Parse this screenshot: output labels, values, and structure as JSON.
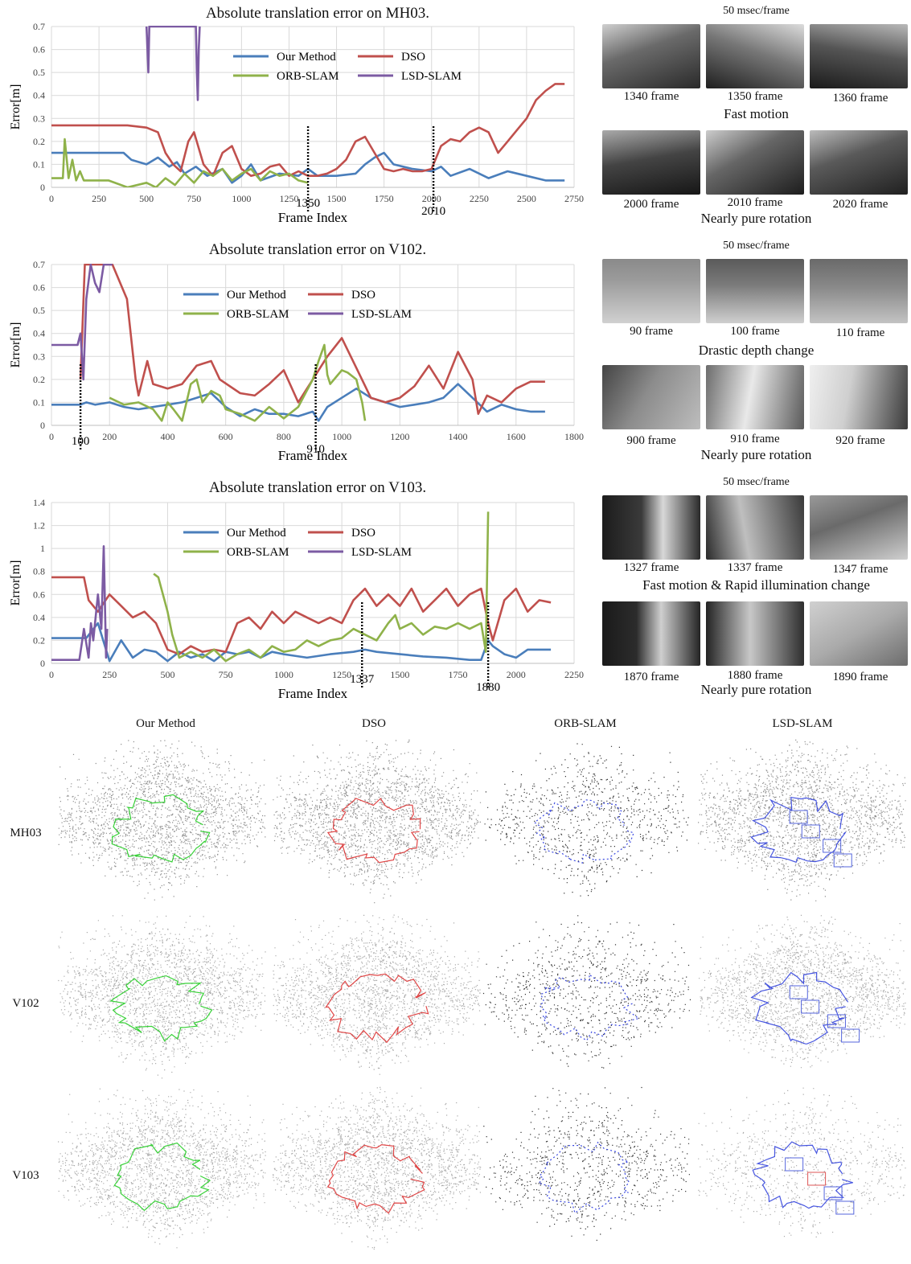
{
  "chart_data": [
    {
      "type": "line",
      "title": "Absolute translation error on MH03.",
      "xlabel": "Frame Index",
      "ylabel": "Error[m]",
      "xlim": [
        0,
        2750
      ],
      "ylim": [
        0,
        0.7
      ],
      "x_ticks": [
        "0",
        "250",
        "500",
        "750",
        "1000",
        "1250",
        "1500",
        "1750",
        "2000",
        "2250",
        "2500",
        "2750"
      ],
      "y_ticks": [
        "0",
        "0.1",
        "0.2",
        "0.3",
        "0.4",
        "0.5",
        "0.6",
        "0.7"
      ],
      "markers": [
        {
          "x": 1350,
          "label": "1350"
        },
        {
          "x": 2010,
          "label": "2010"
        }
      ],
      "legend": "top-center",
      "series": [
        {
          "name": "Our Method",
          "color": "#4a7ebb",
          "x": [
            0,
            150,
            380,
            420,
            500,
            560,
            620,
            660,
            700,
            760,
            820,
            900,
            950,
            1000,
            1050,
            1100,
            1200,
            1300,
            1350,
            1400,
            1500,
            1600,
            1650,
            1700,
            1750,
            1800,
            1900,
            2000,
            2050,
            2100,
            2200,
            2300,
            2400,
            2500,
            2600,
            2700
          ],
          "y": [
            0.15,
            0.15,
            0.15,
            0.12,
            0.1,
            0.13,
            0.09,
            0.11,
            0.06,
            0.09,
            0.05,
            0.08,
            0.02,
            0.05,
            0.1,
            0.03,
            0.06,
            0.05,
            0.08,
            0.05,
            0.05,
            0.06,
            0.1,
            0.13,
            0.15,
            0.1,
            0.08,
            0.07,
            0.09,
            0.05,
            0.08,
            0.04,
            0.07,
            0.05,
            0.03,
            0.03
          ]
        },
        {
          "name": "DSO",
          "color": "#c0504d",
          "x": [
            0,
            200,
            400,
            500,
            560,
            600,
            640,
            680,
            720,
            750,
            800,
            850,
            900,
            950,
            1000,
            1050,
            1100,
            1150,
            1200,
            1250,
            1300,
            1350,
            1400,
            1450,
            1500,
            1550,
            1600,
            1650,
            1700,
            1750,
            1800,
            1850,
            1900,
            1950,
            2000,
            2050,
            2100,
            2150,
            2200,
            2250,
            2300,
            2350,
            2400,
            2450,
            2500,
            2550,
            2600,
            2650,
            2700
          ],
          "y": [
            0.27,
            0.27,
            0.27,
            0.26,
            0.24,
            0.15,
            0.1,
            0.07,
            0.2,
            0.24,
            0.1,
            0.05,
            0.15,
            0.18,
            0.08,
            0.05,
            0.06,
            0.09,
            0.1,
            0.05,
            0.07,
            0.05,
            0.05,
            0.06,
            0.08,
            0.12,
            0.2,
            0.22,
            0.15,
            0.08,
            0.07,
            0.08,
            0.07,
            0.07,
            0.08,
            0.18,
            0.21,
            0.2,
            0.24,
            0.26,
            0.24,
            0.15,
            0.2,
            0.25,
            0.3,
            0.38,
            0.42,
            0.45,
            0.45
          ]
        },
        {
          "name": "ORB-SLAM",
          "color": "#8fb24a",
          "x": [
            0,
            60,
            70,
            90,
            110,
            130,
            150,
            170,
            200,
            300,
            400,
            500,
            550,
            600,
            650,
            700,
            750,
            800,
            850,
            900,
            950,
            1000,
            1050,
            1100,
            1150,
            1200,
            1250,
            1300,
            1350
          ],
          "y": [
            0.04,
            0.04,
            0.21,
            0.04,
            0.12,
            0.03,
            0.07,
            0.03,
            0.03,
            0.03,
            0.0,
            0.02,
            0.0,
            0.04,
            0.01,
            0.06,
            0.02,
            0.07,
            0.05,
            0.08,
            0.03,
            0.06,
            0.08,
            0.03,
            0.07,
            0.05,
            0.06,
            0.03,
            0.02
          ]
        },
        {
          "name": "LSD-SLAM",
          "color": "#7c5ba3",
          "x": [
            500,
            505,
            510,
            515,
            760,
            765,
            770,
            775,
            780
          ],
          "y": [
            0.7,
            0.6,
            0.5,
            0.7,
            0.7,
            0.5,
            0.38,
            0.6,
            0.7
          ]
        }
      ]
    },
    {
      "type": "line",
      "title": "Absolute translation error on V102.",
      "xlabel": "Frame Index",
      "ylabel": "Error[m]",
      "xlim": [
        0,
        1800
      ],
      "ylim": [
        0,
        0.7
      ],
      "x_ticks": [
        "0",
        "200",
        "400",
        "600",
        "800",
        "1000",
        "1200",
        "1400",
        "1600",
        "1800"
      ],
      "y_ticks": [
        "0",
        "0.1",
        "0.2",
        "0.3",
        "0.4",
        "0.5",
        "0.6",
        "0.7"
      ],
      "markers": [
        {
          "x": 100,
          "label": "100"
        },
        {
          "x": 910,
          "label": "910"
        }
      ],
      "legend": "top-center",
      "series": [
        {
          "name": "Our Method",
          "color": "#4a7ebb",
          "x": [
            0,
            100,
            120,
            150,
            200,
            250,
            300,
            350,
            400,
            450,
            500,
            550,
            600,
            650,
            700,
            750,
            800,
            850,
            900,
            920,
            950,
            1000,
            1050,
            1100,
            1150,
            1200,
            1250,
            1300,
            1350,
            1400,
            1450,
            1500,
            1550,
            1600,
            1650,
            1700
          ],
          "y": [
            0.09,
            0.09,
            0.1,
            0.09,
            0.1,
            0.08,
            0.07,
            0.08,
            0.09,
            0.1,
            0.12,
            0.14,
            0.08,
            0.04,
            0.07,
            0.05,
            0.05,
            0.04,
            0.06,
            0.02,
            0.08,
            0.12,
            0.16,
            0.12,
            0.1,
            0.08,
            0.09,
            0.1,
            0.12,
            0.18,
            0.12,
            0.06,
            0.09,
            0.07,
            0.06,
            0.06
          ]
        },
        {
          "name": "DSO",
          "color": "#c0504d",
          "x": [
            100,
            115,
            125,
            200,
            210,
            260,
            290,
            300,
            330,
            350,
            400,
            450,
            500,
            550,
            580,
            650,
            700,
            750,
            800,
            850,
            900,
            950,
            1000,
            1050,
            1100,
            1150,
            1200,
            1250,
            1300,
            1350,
            1400,
            1450,
            1470,
            1500,
            1550,
            1600,
            1650,
            1700
          ],
          "y": [
            0.2,
            0.7,
            0.7,
            0.7,
            0.7,
            0.55,
            0.2,
            0.13,
            0.28,
            0.18,
            0.16,
            0.18,
            0.26,
            0.28,
            0.2,
            0.14,
            0.13,
            0.18,
            0.24,
            0.1,
            0.2,
            0.3,
            0.38,
            0.25,
            0.12,
            0.1,
            0.12,
            0.17,
            0.26,
            0.16,
            0.32,
            0.2,
            0.05,
            0.13,
            0.1,
            0.16,
            0.19,
            0.19
          ]
        },
        {
          "name": "ORB-SLAM",
          "color": "#8fb24a",
          "x": [
            200,
            250,
            300,
            350,
            380,
            400,
            420,
            450,
            480,
            500,
            520,
            550,
            580,
            600,
            650,
            700,
            750,
            800,
            850,
            900,
            920,
            940,
            950,
            960,
            980,
            1000,
            1020,
            1050,
            1070,
            1080
          ],
          "y": [
            0.12,
            0.09,
            0.1,
            0.07,
            0.02,
            0.1,
            0.07,
            0.02,
            0.18,
            0.2,
            0.1,
            0.15,
            0.13,
            0.07,
            0.05,
            0.02,
            0.08,
            0.03,
            0.08,
            0.2,
            0.28,
            0.35,
            0.22,
            0.18,
            0.21,
            0.24,
            0.23,
            0.2,
            0.1,
            0.02
          ]
        },
        {
          "name": "LSD-SLAM",
          "color": "#7c5ba3",
          "x": [
            0,
            90,
            100,
            110,
            120,
            135,
            150,
            165,
            180,
            200,
            210
          ],
          "y": [
            0.35,
            0.35,
            0.4,
            0.2,
            0.55,
            0.7,
            0.62,
            0.58,
            0.7,
            0.7,
            0.7
          ]
        }
      ]
    },
    {
      "type": "line",
      "title": "Absolute translation error on V103.",
      "xlabel": "Frame Index",
      "ylabel": "Error[m]",
      "xlim": [
        0,
        2250
      ],
      "ylim": [
        0,
        1.4
      ],
      "x_ticks": [
        "0",
        "250",
        "500",
        "750",
        "1000",
        "1250",
        "1500",
        "1750",
        "2000",
        "2250"
      ],
      "y_ticks": [
        "0",
        "0.2",
        "0.4",
        "0.6",
        "0.8",
        "1",
        "1.2",
        "1.4"
      ],
      "markers": [
        {
          "x": 1337,
          "label": "1337"
        },
        {
          "x": 1880,
          "label": "1880"
        }
      ],
      "legend": "top-center",
      "series": [
        {
          "name": "Our Method",
          "color": "#4a7ebb",
          "x": [
            0,
            150,
            200,
            250,
            300,
            350,
            400,
            450,
            500,
            550,
            600,
            650,
            700,
            750,
            800,
            850,
            900,
            950,
            1000,
            1100,
            1200,
            1300,
            1350,
            1400,
            1500,
            1600,
            1700,
            1800,
            1850,
            1880,
            1900,
            1950,
            2000,
            2050,
            2100,
            2150
          ],
          "y": [
            0.22,
            0.22,
            0.35,
            0.02,
            0.2,
            0.05,
            0.12,
            0.1,
            0.02,
            0.1,
            0.05,
            0.08,
            0.02,
            0.1,
            0.08,
            0.1,
            0.05,
            0.1,
            0.08,
            0.05,
            0.08,
            0.1,
            0.12,
            0.1,
            0.08,
            0.06,
            0.05,
            0.03,
            0.03,
            0.2,
            0.15,
            0.08,
            0.05,
            0.12,
            0.12,
            0.12
          ]
        },
        {
          "name": "DSO",
          "color": "#c0504d",
          "x": [
            0,
            140,
            160,
            200,
            250,
            300,
            350,
            400,
            450,
            500,
            550,
            600,
            650,
            700,
            750,
            800,
            850,
            900,
            950,
            1000,
            1050,
            1100,
            1150,
            1200,
            1250,
            1300,
            1350,
            1400,
            1450,
            1500,
            1550,
            1600,
            1650,
            1700,
            1750,
            1800,
            1850,
            1880,
            1900,
            1950,
            2000,
            2050,
            2100,
            2150
          ],
          "y": [
            0.75,
            0.75,
            0.55,
            0.45,
            0.6,
            0.5,
            0.4,
            0.45,
            0.35,
            0.12,
            0.08,
            0.15,
            0.1,
            0.12,
            0.1,
            0.35,
            0.4,
            0.3,
            0.45,
            0.35,
            0.45,
            0.4,
            0.35,
            0.4,
            0.35,
            0.55,
            0.65,
            0.5,
            0.6,
            0.5,
            0.65,
            0.45,
            0.55,
            0.65,
            0.5,
            0.6,
            0.65,
            0.35,
            0.2,
            0.55,
            0.65,
            0.45,
            0.55,
            0.53
          ]
        },
        {
          "name": "ORB-SLAM",
          "color": "#8fb24a",
          "x": [
            440,
            460,
            500,
            520,
            550,
            600,
            650,
            700,
            750,
            800,
            850,
            900,
            950,
            1000,
            1050,
            1100,
            1150,
            1200,
            1250,
            1300,
            1350,
            1400,
            1450,
            1480,
            1500,
            1550,
            1600,
            1650,
            1700,
            1750,
            1800,
            1850,
            1870,
            1880
          ],
          "y": [
            0.78,
            0.75,
            0.45,
            0.25,
            0.05,
            0.1,
            0.05,
            0.12,
            0.02,
            0.08,
            0.12,
            0.05,
            0.15,
            0.1,
            0.12,
            0.2,
            0.15,
            0.2,
            0.22,
            0.3,
            0.25,
            0.2,
            0.35,
            0.42,
            0.3,
            0.35,
            0.25,
            0.32,
            0.3,
            0.35,
            0.3,
            0.35,
            0.1,
            1.32
          ]
        },
        {
          "name": "LSD-SLAM",
          "color": "#7c5ba3",
          "x": [
            0,
            120,
            140,
            160,
            170,
            180,
            200,
            215,
            225,
            235,
            240
          ],
          "y": [
            0.03,
            0.03,
            0.3,
            0.05,
            0.35,
            0.2,
            0.6,
            0.3,
            1.02,
            0.05,
            0.3
          ]
        }
      ]
    }
  ],
  "thumbnails": [
    {
      "rate": "50 msec/frame",
      "rows": [
        {
          "labels": [
            "1340 frame",
            "1350 frame",
            "1360 frame"
          ],
          "caption": "Fast motion"
        },
        {
          "labels": [
            "2000 frame",
            "2010 frame",
            "2020 frame"
          ],
          "caption": "Nearly pure rotation"
        }
      ]
    },
    {
      "rate": "50 msec/frame",
      "rows": [
        {
          "labels": [
            "90 frame",
            "100 frame",
            "110 frame"
          ],
          "caption": "Drastic depth change"
        },
        {
          "labels": [
            "900 frame",
            "910 frame",
            "920 frame"
          ],
          "caption": "Nearly pure rotation"
        }
      ]
    },
    {
      "rate": "50 msec/frame",
      "rows": [
        {
          "labels": [
            "1327 frame",
            "1337 frame",
            "1347 frame"
          ],
          "caption": "Fast motion &  Rapid illumination change"
        },
        {
          "labels": [
            "1870 frame",
            "1880 frame",
            "1890 frame"
          ],
          "caption": "Nearly pure rotation"
        }
      ]
    }
  ],
  "reconstructions": {
    "columns": [
      "Our Method",
      "DSO",
      "ORB-SLAM",
      "LSD-SLAM"
    ],
    "rows": [
      "MH03",
      "V102",
      "V103"
    ],
    "trajectory_colors": [
      "#22cc22",
      "#dd3333",
      "#2233dd",
      "#3344dd"
    ]
  }
}
